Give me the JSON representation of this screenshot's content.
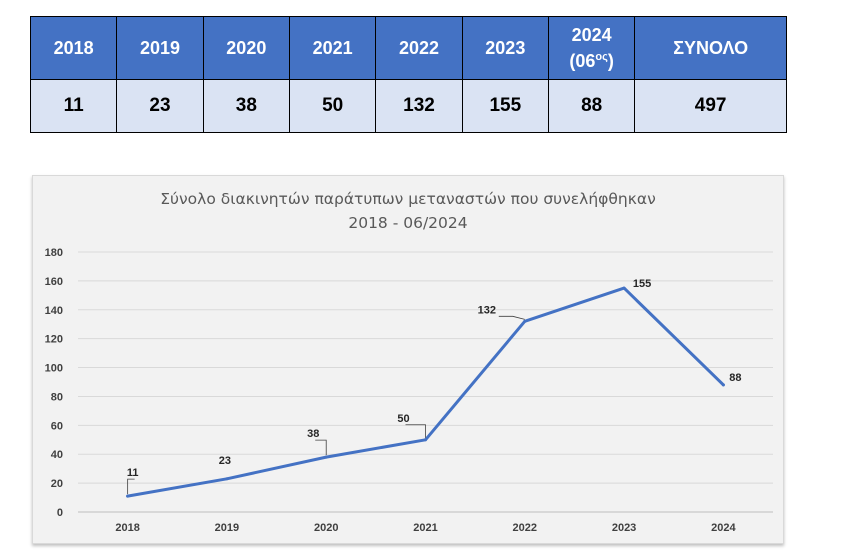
{
  "table": {
    "headers": [
      "2018",
      "2019",
      "2020",
      "2021",
      "2022",
      "2023",
      "2024",
      "ΣΥΝΟΛΟ"
    ],
    "header_2024_note": "(06",
    "header_2024_sup": "ος",
    "header_2024_close": ")",
    "values": [
      "11",
      "23",
      "38",
      "50",
      "132",
      "155",
      "88",
      "497"
    ]
  },
  "chart_data": {
    "type": "line",
    "title": "Σύνολο διακινητών παράτυπων μεταναστών που συνελήφθηκαν",
    "subtitle": "2018 - 06/2024",
    "categories": [
      "2018",
      "2019",
      "2020",
      "2021",
      "2022",
      "2023",
      "2024"
    ],
    "series": [
      {
        "values": [
          11,
          23,
          38,
          50,
          132,
          155,
          88
        ]
      }
    ],
    "ylim": [
      0,
      180
    ],
    "yticks": [
      0,
      20,
      40,
      60,
      80,
      100,
      120,
      140,
      160,
      180
    ],
    "grid": true,
    "legend": "none",
    "line_color": "#4472c4",
    "xlabel": "",
    "ylabel": ""
  }
}
